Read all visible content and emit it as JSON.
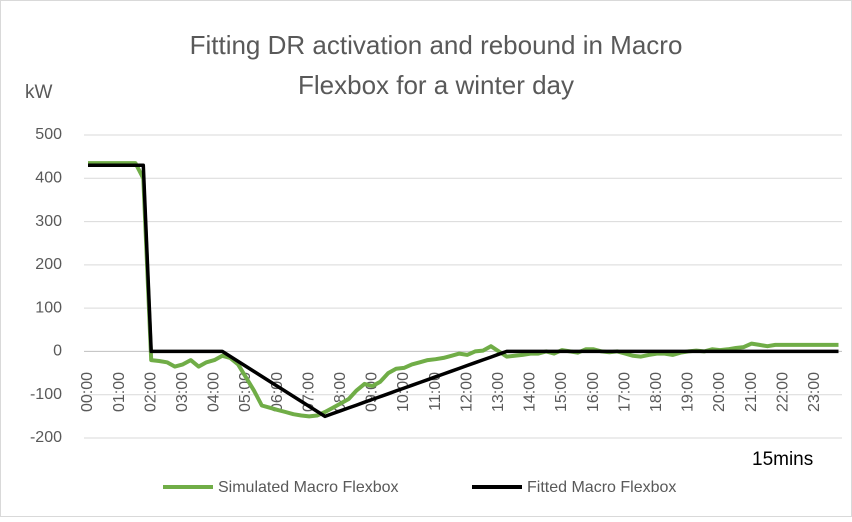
{
  "chart_data": {
    "type": "line",
    "title": [
      "Fitting DR activation and rebound in Macro",
      "Flexbox for a winter day"
    ],
    "y_label": "kW",
    "x_label": "15mins",
    "categories": [
      "00:00",
      null,
      null,
      null,
      "01:00",
      null,
      null,
      null,
      "02:00",
      null,
      null,
      null,
      "03:00",
      null,
      null,
      null,
      "04:00",
      null,
      null,
      null,
      "05:00",
      null,
      null,
      null,
      "06:00",
      null,
      null,
      null,
      "07:00",
      null,
      null,
      null,
      "08:00",
      null,
      null,
      null,
      "09:00",
      null,
      null,
      null,
      "10:00",
      null,
      null,
      null,
      "11:00",
      null,
      null,
      null,
      "12:00",
      null,
      null,
      null,
      "13:00",
      null,
      null,
      null,
      "14:00",
      null,
      null,
      null,
      "15:00",
      null,
      null,
      null,
      "16:00",
      null,
      null,
      null,
      "17:00",
      null,
      null,
      null,
      "18:00",
      null,
      null,
      null,
      "19:00",
      null,
      null,
      null,
      "20:00",
      null,
      null,
      null,
      "21:00",
      null,
      null,
      null,
      "22:00",
      null,
      null,
      null,
      "23:00",
      null,
      null,
      null
    ],
    "series": [
      {
        "name": "Simulated Macro Flexbox",
        "color": "#70ad47",
        "values": [
          435,
          435,
          435,
          435,
          435,
          435,
          435,
          400,
          -20,
          -22,
          -25,
          -35,
          -30,
          -20,
          -35,
          -25,
          -20,
          -10,
          -15,
          -30,
          -60,
          -90,
          -125,
          -130,
          -135,
          -140,
          -145,
          -148,
          -150,
          -148,
          -140,
          -130,
          -120,
          -110,
          -90,
          -75,
          -80,
          -70,
          -50,
          -40,
          -38,
          -30,
          -25,
          -20,
          -18,
          -15,
          -10,
          -5,
          -8,
          0,
          2,
          12,
          0,
          -12,
          -10,
          -8,
          -5,
          -5,
          0,
          -5,
          3,
          0,
          -3,
          5,
          5,
          0,
          -2,
          0,
          -5,
          -10,
          -12,
          -8,
          -5,
          -5,
          -8,
          -3,
          0,
          2,
          0,
          5,
          3,
          5,
          8,
          10,
          18,
          15,
          12,
          15,
          15,
          15,
          15,
          15,
          15,
          15,
          15,
          15
        ]
      },
      {
        "name": "Fitted Macro Flexbox",
        "color": "#000000",
        "values": [
          430,
          430,
          430,
          430,
          430,
          430,
          430,
          430,
          0,
          0,
          0,
          0,
          0,
          0,
          0,
          0,
          0,
          0,
          -11.5,
          -23.1,
          -34.6,
          -46.2,
          -57.7,
          -69.2,
          -80.8,
          -92.3,
          -103.8,
          -115.4,
          -126.9,
          -138.5,
          -150,
          -143.5,
          -137,
          -130.4,
          -123.9,
          -117.4,
          -110.9,
          -104.3,
          -97.8,
          -91.3,
          -84.8,
          -78.3,
          -71.7,
          -65.2,
          -58.7,
          -52.2,
          -45.7,
          -39.1,
          -32.6,
          -26.1,
          -19.6,
          -13,
          -6.5,
          0,
          0,
          0,
          0,
          0,
          0,
          0,
          0,
          0,
          0,
          0,
          0,
          0,
          0,
          0,
          0,
          0,
          0,
          0,
          0,
          0,
          0,
          0,
          0,
          0,
          0,
          0,
          0,
          0,
          0,
          0,
          0,
          0,
          0,
          0,
          0,
          0,
          0,
          0,
          0,
          0,
          0,
          0
        ]
      }
    ],
    "ylim": [
      -200,
      500
    ],
    "yticks": [
      -200,
      -100,
      0,
      100,
      200,
      300,
      400,
      500
    ],
    "grid": true
  }
}
